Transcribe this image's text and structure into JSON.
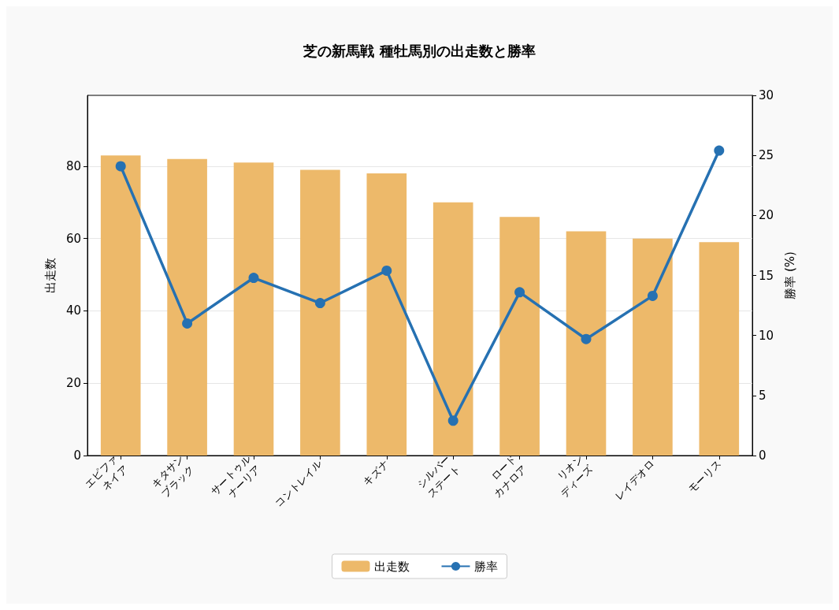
{
  "chart_data": {
    "type": "bar",
    "title": "芝の新馬戦 種牡馬別の出走数と勝率",
    "categories": [
      "エピファ\nネイア",
      "キタサン\nブラック",
      "サートゥル\nナーリア",
      "コントレイル",
      "キズナ",
      "シルバー\nステート",
      "ロード\nカナロア",
      "リオン\nディーズ",
      "レイデオロ",
      "モーリス"
    ],
    "series": [
      {
        "name": "出走数",
        "color": "#edb96a",
        "values": [
          83,
          82,
          81,
          79,
          78,
          70,
          66,
          62,
          60,
          59
        ]
      },
      {
        "name": "勝率",
        "type": "line",
        "axis": "y2",
        "color": "#2671b2",
        "values": [
          24.1,
          11.0,
          14.8,
          12.7,
          15.4,
          2.9,
          13.6,
          9.7,
          13.3,
          25.4
        ]
      }
    ],
    "ylabel": "出走数",
    "y2label": "勝率 (%)",
    "ylim": [
      0,
      99.6
    ],
    "yticks": [
      0,
      20,
      40,
      60,
      80
    ],
    "y2lim": [
      0,
      30
    ],
    "y2ticks": [
      0,
      5,
      10,
      15,
      20,
      25,
      30
    ],
    "grid": "y",
    "legend": "bottom",
    "marker": "circle",
    "line_style": "solid"
  }
}
